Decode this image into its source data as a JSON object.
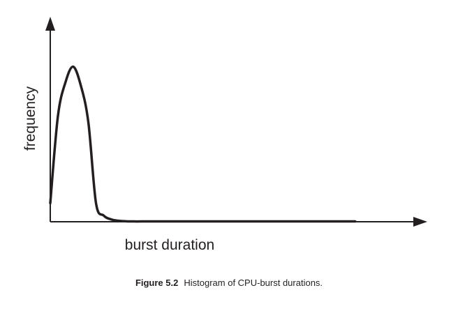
{
  "chart_data": {
    "type": "line",
    "title": "",
    "xlabel": "burst duration",
    "ylabel": "frequency",
    "x": [
      0,
      1,
      2,
      3,
      4,
      5,
      6,
      7,
      8,
      9,
      10,
      11,
      12,
      14,
      16,
      18,
      20,
      24,
      28,
      32,
      36,
      40
    ],
    "series": [
      {
        "values": [
          12,
          68,
          90,
          100,
          88,
          64,
          12,
          4,
          1.5,
          0.6,
          0.3,
          0.2,
          0.2,
          0.2,
          0.2,
          0.2,
          0.2,
          0.2,
          0.2,
          0.2,
          0.2,
          0.2
        ]
      }
    ],
    "xlim": [
      0,
      48
    ],
    "ylim": [
      0,
      125
    ],
    "x_ticks": "none",
    "y_ticks": "none",
    "grid": false
  },
  "caption": {
    "number": "Figure 5.2",
    "text": "Histogram of CPU-burst durations."
  }
}
